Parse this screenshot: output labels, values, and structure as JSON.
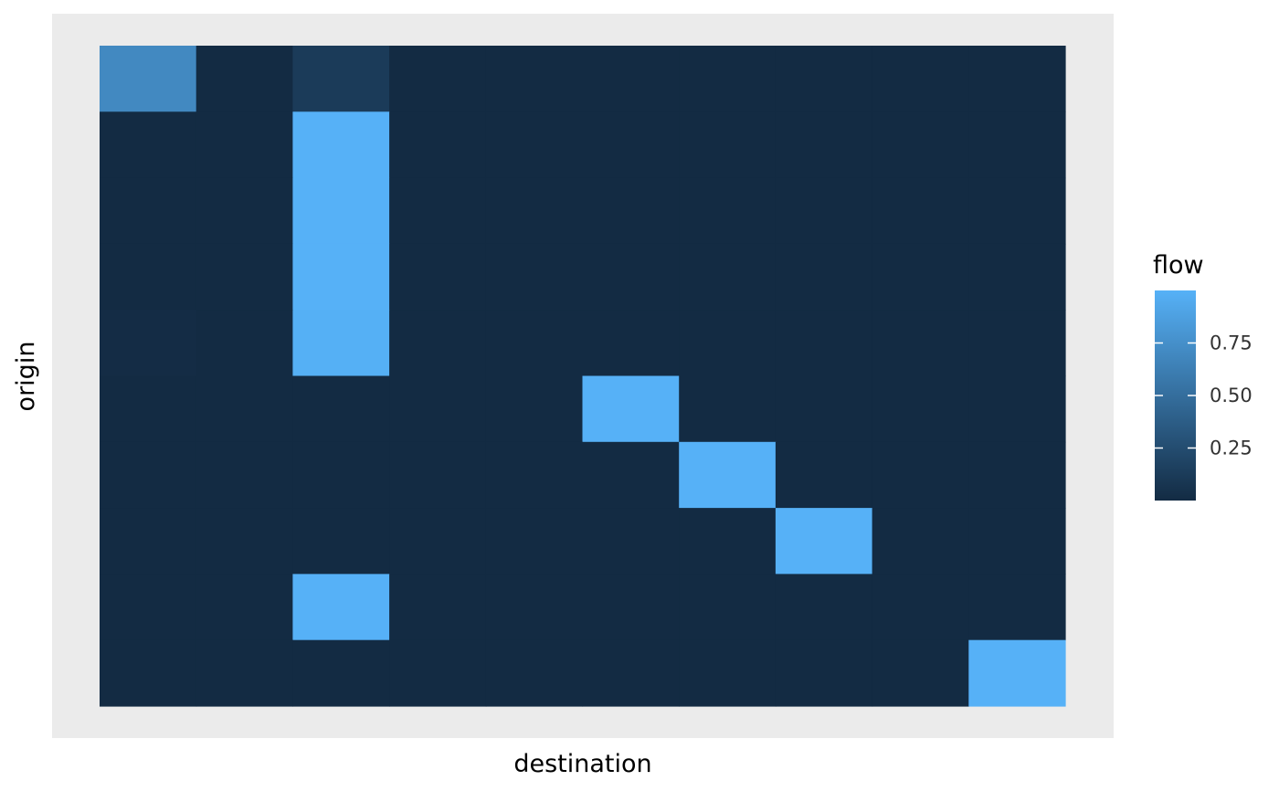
{
  "chart_data": {
    "type": "heatmap",
    "title": "",
    "xlabel": "destination",
    "ylabel": "origin",
    "n_cols": 10,
    "n_rows": 10,
    "row_order": "top-to-bottom",
    "values": [
      [
        0.7,
        0.0,
        0.12,
        0.0,
        0.0,
        0.0,
        0.0,
        0.0,
        0.0,
        0.0
      ],
      [
        0.0,
        0.0,
        1.0,
        0.0,
        0.0,
        0.0,
        0.0,
        0.0,
        0.0,
        0.0
      ],
      [
        0.0,
        0.0,
        1.0,
        0.0,
        0.0,
        0.0,
        0.0,
        0.0,
        0.0,
        0.0
      ],
      [
        0.0,
        0.0,
        1.0,
        0.0,
        0.0,
        0.0,
        0.0,
        0.0,
        0.0,
        0.0
      ],
      [
        0.01,
        0.0,
        0.99,
        0.0,
        0.0,
        0.0,
        0.0,
        0.0,
        0.0,
        0.0
      ],
      [
        0.0,
        0.0,
        0.0,
        0.0,
        0.0,
        1.0,
        0.0,
        0.0,
        0.0,
        0.0
      ],
      [
        0.0,
        0.0,
        0.0,
        0.0,
        0.0,
        0.0,
        1.0,
        0.0,
        0.0,
        0.0
      ],
      [
        0.0,
        0.0,
        0.0,
        0.0,
        0.0,
        0.0,
        0.0,
        1.0,
        0.0,
        0.0
      ],
      [
        0.0,
        0.0,
        1.0,
        0.0,
        0.0,
        0.0,
        0.0,
        0.0,
        0.0,
        0.0
      ],
      [
        0.0,
        0.0,
        0.0,
        0.0,
        0.0,
        0.0,
        0.0,
        0.0,
        0.0,
        1.0
      ]
    ],
    "color_scale": {
      "low": "#132B43",
      "high": "#56B1F7",
      "domain": [
        0,
        1
      ]
    },
    "legend": {
      "title": "flow",
      "position": "right",
      "ticks": [
        0.25,
        0.5,
        0.75
      ],
      "tick_labels": [
        "0.25",
        "0.50",
        "0.75"
      ]
    },
    "grid": false,
    "panel_background": "#EBEBEB"
  }
}
